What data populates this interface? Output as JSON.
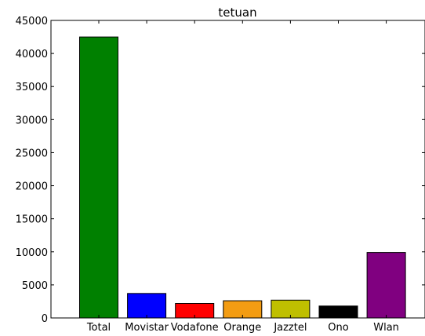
{
  "chart_data": {
    "type": "bar",
    "title": "tetuan",
    "xlabel": "",
    "ylabel": "",
    "categories": [
      "Total",
      "Movistar",
      "Vodafone",
      "Orange",
      "Jazztel",
      "Ono",
      "Wlan"
    ],
    "values": [
      42500,
      3700,
      2200,
      2600,
      2700,
      1800,
      9900
    ],
    "colors": [
      "#008000",
      "#0000ff",
      "#ff0000",
      "#f39c12",
      "#bfbf00",
      "#000000",
      "#800080"
    ],
    "ylim": [
      0,
      45000
    ],
    "yticks": [
      0,
      5000,
      10000,
      15000,
      20000,
      25000,
      30000,
      35000,
      40000,
      45000
    ],
    "ytick_labels": [
      "0",
      "5000",
      "10000",
      "15000",
      "20000",
      "25000",
      "30000",
      "35000",
      "40000",
      "45000"
    ],
    "grid": false,
    "legend": "none"
  }
}
